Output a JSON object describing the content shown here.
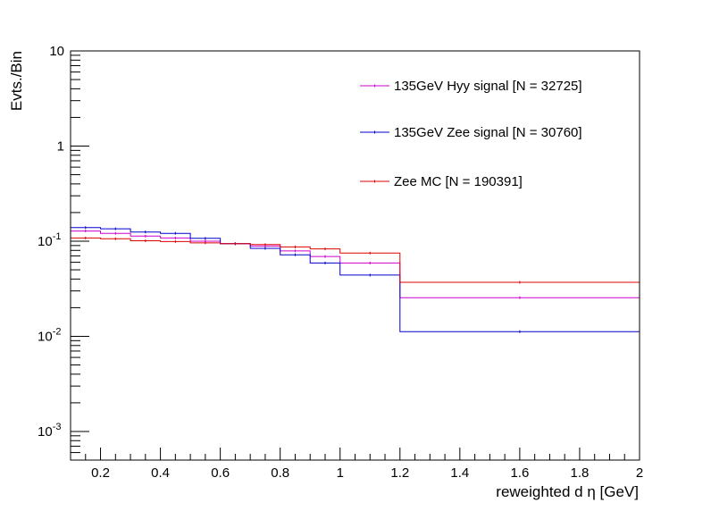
{
  "chart_data": {
    "type": "line",
    "title": "",
    "xlabel": "reweighted d η [GeV]",
    "ylabel": "Evts./Bin",
    "xlim": [
      0.1,
      2.0
    ],
    "ylim": [
      0.0005,
      10
    ],
    "yscale": "log",
    "x_ticks": [
      "0.2",
      "0.4",
      "0.6",
      "0.8",
      "1",
      "1.2",
      "1.4",
      "1.6",
      "1.8",
      "2"
    ],
    "y_ticks": [
      {
        "base": "10",
        "exp": "-3",
        "value": 0.001
      },
      {
        "base": "10",
        "exp": "-2",
        "value": 0.01
      },
      {
        "base": "10",
        "exp": "-1",
        "value": 0.1
      },
      {
        "base": "1",
        "exp": "",
        "value": 1
      },
      {
        "base": "10",
        "exp": "",
        "value": 10
      }
    ],
    "bin_edges": [
      0.1,
      0.2,
      0.3,
      0.4,
      0.5,
      0.6,
      0.7,
      0.8,
      0.9,
      1.0,
      1.2,
      2.0
    ],
    "legend_position": "top-right",
    "series": [
      {
        "name": "135GeV Hyy signal [N = 32725]",
        "color": "#cc00cc",
        "values": [
          0.128,
          0.121,
          0.113,
          0.108,
          0.1,
          0.094,
          0.089,
          0.079,
          0.069,
          0.059,
          0.0255
        ]
      },
      {
        "name": "135GeV Zee signal [N = 30760]",
        "color": "#0000cc",
        "values": [
          0.139,
          0.135,
          0.125,
          0.121,
          0.107,
          0.094,
          0.084,
          0.072,
          0.059,
          0.044,
          0.0112
        ]
      },
      {
        "name": "Zee MC [N = 190391]",
        "color": "#dd0000",
        "values": [
          0.108,
          0.106,
          0.101,
          0.099,
          0.096,
          0.094,
          0.092,
          0.087,
          0.083,
          0.075,
          0.037
        ]
      }
    ]
  }
}
